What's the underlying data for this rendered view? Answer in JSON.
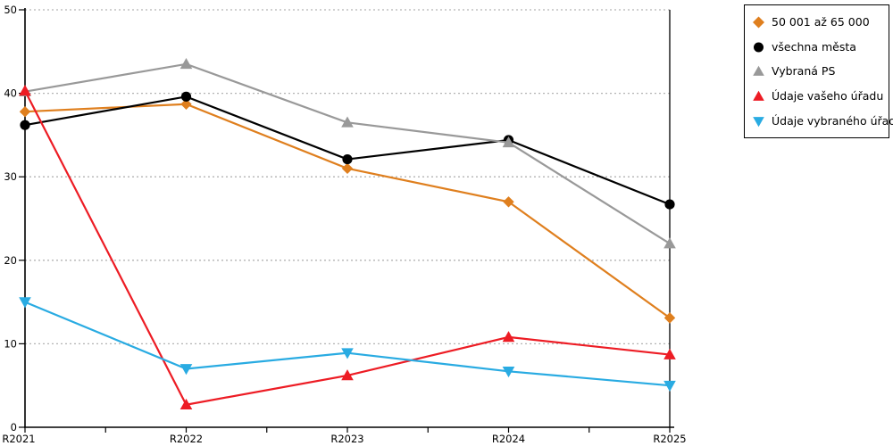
{
  "chart_data": {
    "type": "line",
    "title": "",
    "xlabel": "",
    "ylabel": "",
    "categories": [
      "R2021",
      "R2022",
      "R2023",
      "R2024",
      "R2025"
    ],
    "ylim": [
      0,
      50
    ],
    "yticks": [
      0,
      10,
      20,
      30,
      40,
      50
    ],
    "grid": "horizontal-dotted",
    "legend_position": "top-right",
    "series": [
      {
        "name": "50 001 až 65 000",
        "marker": "diamond",
        "color": "#DF7F1E",
        "values": [
          37.8,
          38.7,
          31.0,
          27.0,
          13.1
        ]
      },
      {
        "name": "všechna města",
        "marker": "circle",
        "color": "#000000",
        "values": [
          36.2,
          39.6,
          32.1,
          34.4,
          26.7
        ]
      },
      {
        "name": "Vybraná PS",
        "marker": "triangle-up",
        "color": "#999999",
        "values": [
          40.2,
          43.5,
          36.5,
          34.1,
          22.0
        ]
      },
      {
        "name": "Údaje vašeho úřadu",
        "marker": "triangle-up",
        "color": "#ED1C24",
        "values": [
          40.3,
          2.7,
          6.2,
          10.8,
          8.7
        ]
      },
      {
        "name": "Údaje vybraného úřadu",
        "marker": "triangle-down",
        "color": "#29ABE2",
        "values": [
          15.0,
          7.0,
          8.9,
          6.7,
          5.0
        ]
      }
    ]
  }
}
